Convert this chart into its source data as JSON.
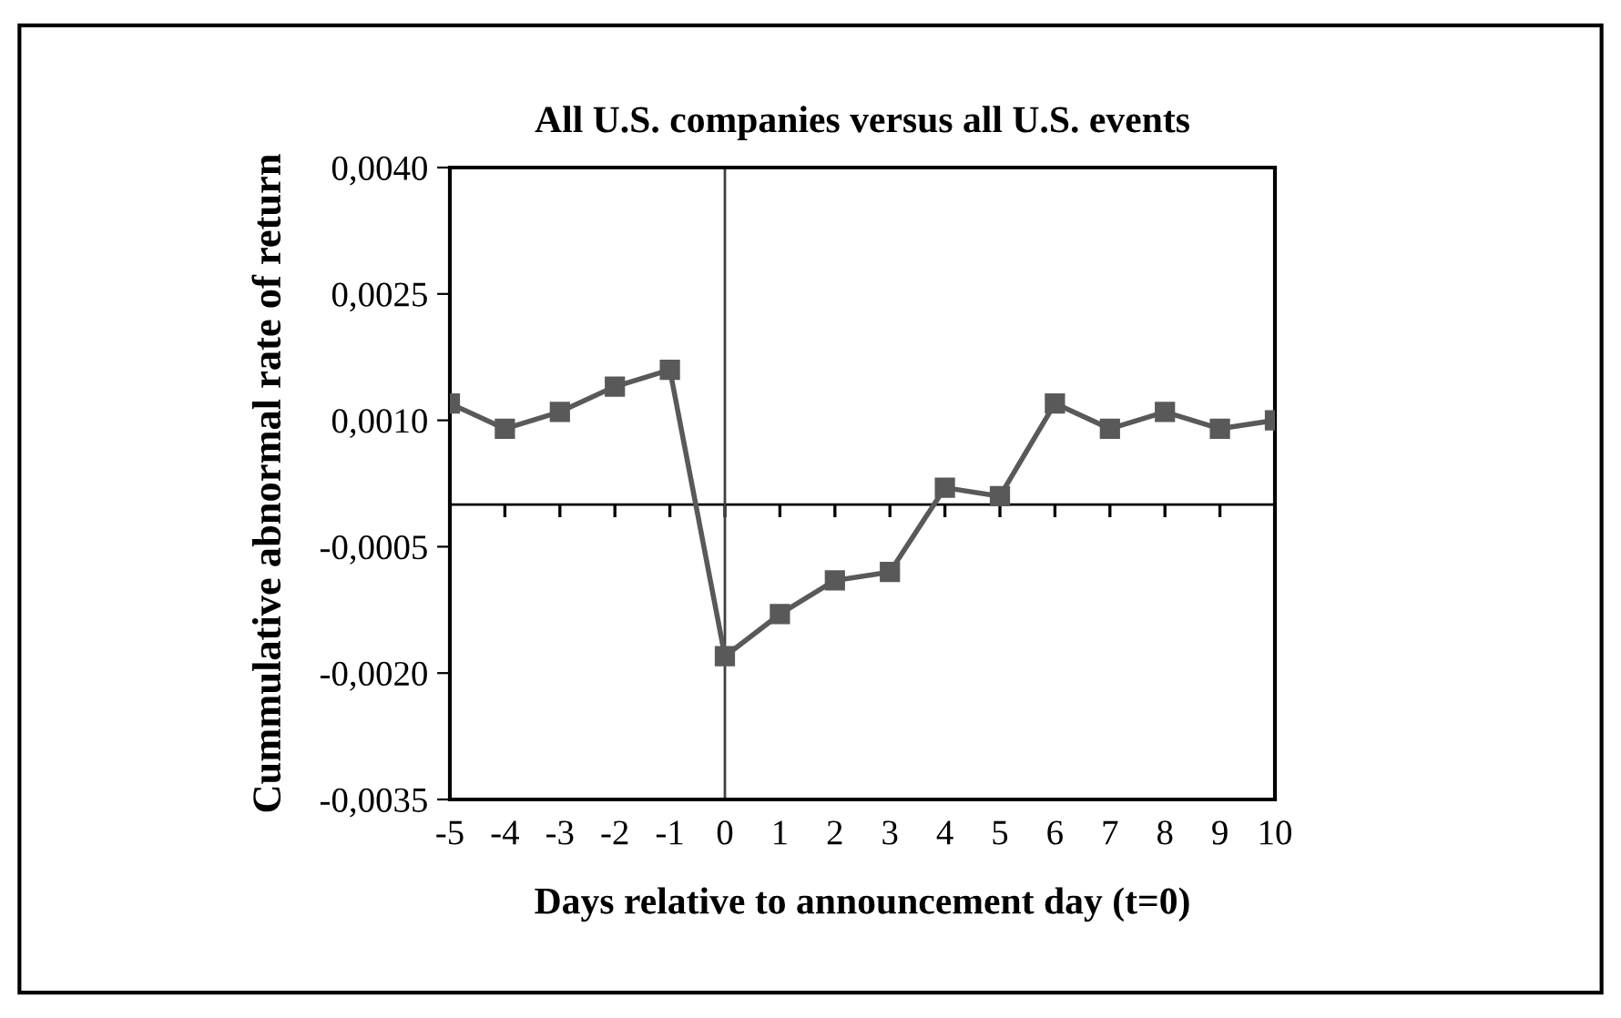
{
  "chart_data": {
    "type": "line",
    "title": "All U.S. companies versus all U.S. events",
    "xlabel": "Days relative to announcement day (t=0)",
    "ylabel": "Cummulative abnormal rate of return",
    "x": [
      -5,
      -4,
      -3,
      -2,
      -1,
      0,
      1,
      2,
      3,
      4,
      5,
      6,
      7,
      8,
      9,
      10
    ],
    "series": [
      {
        "color": "#595959",
        "values": [
          0.0012,
          0.0009,
          0.0011,
          0.0014,
          0.0016,
          -0.0018,
          -0.0013,
          -0.0009,
          -0.0008,
          0.0002,
          0.0001,
          0.0012,
          0.0009,
          0.0011,
          0.0009,
          0.001
        ]
      }
    ],
    "xlim": [
      -5,
      10
    ],
    "xticks": [
      -5,
      -4,
      -3,
      -2,
      -1,
      0,
      1,
      2,
      3,
      4,
      5,
      6,
      7,
      8,
      9,
      10
    ],
    "ylim": [
      -0.0035,
      0.004
    ],
    "yticks": [
      {
        "value": -0.0035,
        "label": "-0,0035"
      },
      {
        "value": -0.002,
        "label": "-0,0020"
      },
      {
        "value": -0.0005,
        "label": "-0,0005"
      },
      {
        "value": 0.001,
        "label": "0,0010"
      },
      {
        "value": 0.0025,
        "label": "0,0025"
      },
      {
        "value": 0.004,
        "label": "0,0040"
      }
    ],
    "ref_lines": [
      {
        "axis": "y",
        "value": 0,
        "color": "#000000"
      },
      {
        "axis": "x",
        "value": 0,
        "color": "#404040"
      }
    ],
    "marker": "square",
    "line_style": "solid",
    "grid": false,
    "legend": false
  }
}
